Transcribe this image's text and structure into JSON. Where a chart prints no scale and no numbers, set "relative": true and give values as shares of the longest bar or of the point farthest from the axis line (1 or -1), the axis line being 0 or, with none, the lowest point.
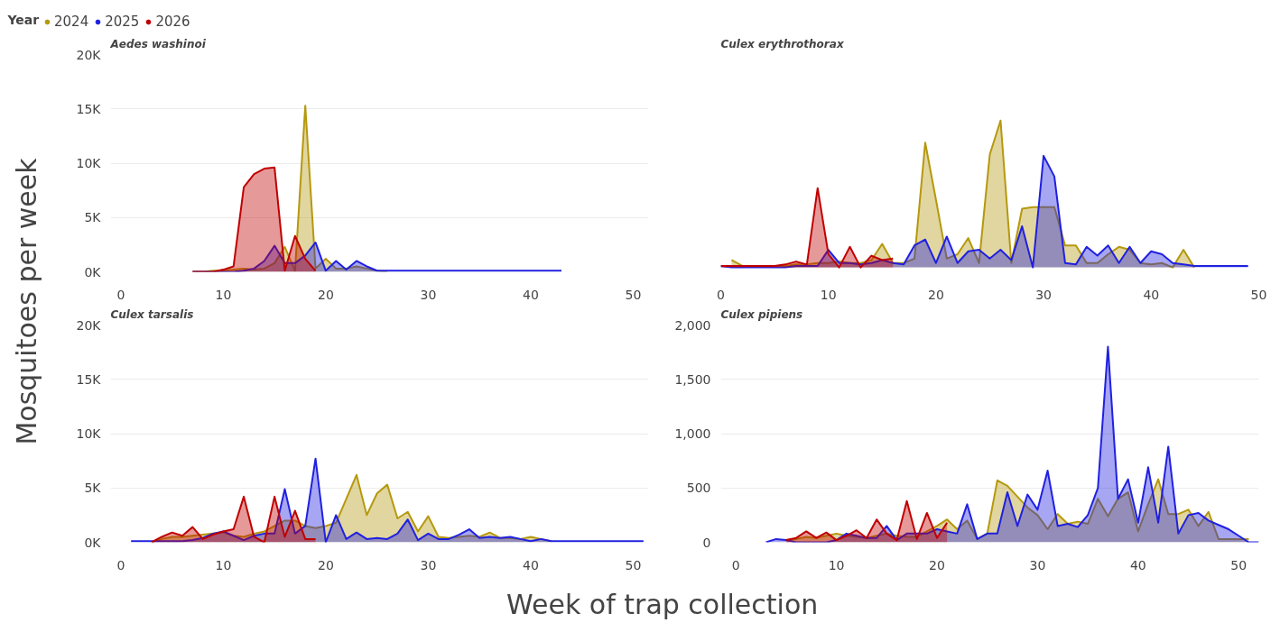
{
  "chart_data": [
    {
      "type": "area",
      "title": "Aedes washinoi",
      "ylabel": "Mosquitoes per week",
      "legend": "top",
      "legend_title": "Year",
      "xlim": [
        -1,
        51.5
      ],
      "xticks": [
        0,
        10,
        20,
        30,
        40,
        50
      ],
      "ylim": [
        0,
        20000
      ],
      "yticks": [
        {
          "value": 0,
          "label": "0K"
        },
        {
          "value": 5000,
          "label": "5K"
        },
        {
          "value": 10000,
          "label": "10K"
        },
        {
          "value": 15000,
          "label": "15K"
        },
        {
          "value": 20000,
          "label": "20K"
        }
      ],
      "grid": "y",
      "series": [
        {
          "name": "2024",
          "color": "#b5980e",
          "x": [
            7,
            8,
            9,
            10,
            11,
            12,
            13,
            14,
            15,
            16,
            17,
            18,
            19,
            20,
            21,
            22,
            23,
            24,
            25,
            26
          ],
          "values": [
            0,
            0,
            100,
            100,
            200,
            300,
            200,
            300,
            800,
            2300,
            100,
            15300,
            300,
            1200,
            300,
            300,
            500,
            300,
            100,
            0
          ]
        },
        {
          "name": "2025",
          "color": "#2020e0",
          "x": [
            7,
            8,
            9,
            10,
            11,
            12,
            13,
            14,
            15,
            16,
            17,
            18,
            19,
            20,
            21,
            22,
            23,
            24,
            25,
            26,
            27,
            28,
            29,
            30,
            31,
            32,
            33,
            34,
            35,
            36,
            37,
            38,
            39,
            40,
            41,
            42,
            43
          ],
          "values": [
            0,
            0,
            0,
            0,
            0,
            100,
            300,
            1000,
            2400,
            800,
            800,
            1500,
            2700,
            100,
            1000,
            200,
            1000,
            500,
            100,
            100,
            100,
            100,
            100,
            100,
            100,
            100,
            100,
            100,
            100,
            100,
            100,
            100,
            100,
            100,
            100,
            100,
            100
          ]
        },
        {
          "name": "2026",
          "color": "#c00000",
          "x": [
            7,
            8,
            9,
            10,
            11,
            12,
            13,
            14,
            15,
            16,
            17,
            18,
            19
          ],
          "values": [
            0,
            0,
            0,
            200,
            500,
            7800,
            9000,
            9500,
            9600,
            100,
            3300,
            1200,
            100
          ]
        }
      ]
    },
    {
      "type": "area",
      "title": "Culex erythrothorax",
      "relative": true,
      "tick_labels": "x",
      "xlim": [
        0,
        50
      ],
      "xticks": [
        0,
        10,
        20,
        30,
        40,
        50
      ],
      "series": [
        {
          "color": "#b5980e",
          "x": [
            1,
            2,
            3,
            4,
            5,
            6,
            7,
            8,
            9,
            10,
            11,
            12,
            13,
            14,
            15,
            16,
            17,
            18,
            19,
            20,
            21,
            22,
            23,
            24,
            25,
            26,
            27,
            28,
            29,
            30,
            31,
            32,
            33,
            34,
            35,
            36,
            37,
            38,
            39,
            40,
            41,
            42,
            43,
            44
          ],
          "values": [
            0.05,
            0.01,
            0.01,
            0.01,
            0.01,
            0.01,
            0.02,
            0.02,
            0.03,
            0.03,
            0.04,
            0.03,
            0.03,
            0.05,
            0.16,
            0.03,
            0.03,
            0.06,
            0.85,
            0.46,
            0.06,
            0.09,
            0.2,
            0.03,
            0.77,
            1,
            0.03,
            0.4,
            0.41,
            0.41,
            0.41,
            0.15,
            0.15,
            0.03,
            0.03,
            0.09,
            0.14,
            0.12,
            0.03,
            0.02,
            0.03,
            0,
            0.12,
            0
          ]
        },
        {
          "color": "#2020e0",
          "x": [
            0,
            1,
            2,
            3,
            4,
            5,
            6,
            7,
            8,
            9,
            10,
            11,
            12,
            13,
            14,
            15,
            16,
            17,
            18,
            19,
            20,
            21,
            22,
            23,
            24,
            25,
            26,
            27,
            28,
            29,
            30,
            31,
            32,
            33,
            34,
            35,
            36,
            37,
            38,
            39,
            40,
            41,
            42,
            43,
            44,
            45,
            46,
            47,
            48,
            49
          ],
          "values": [
            0.01,
            0,
            0,
            0,
            0,
            0,
            0,
            0.01,
            0.01,
            0.01,
            0.12,
            0.03,
            0.03,
            0.02,
            0.03,
            0.05,
            0.03,
            0.02,
            0.15,
            0.19,
            0.03,
            0.21,
            0.03,
            0.11,
            0.12,
            0.06,
            0.12,
            0.05,
            0.28,
            0,
            0.76,
            0.62,
            0.03,
            0.02,
            0.14,
            0.08,
            0.15,
            0.03,
            0.14,
            0.03,
            0.11,
            0.09,
            0.03,
            0.02,
            0.01,
            0.01,
            0.01,
            0.01,
            0.01,
            0.01
          ]
        },
        {
          "color": "#c00000",
          "x": [
            0,
            1,
            2,
            3,
            4,
            5,
            6,
            7,
            8,
            9,
            10,
            11,
            12,
            13,
            14,
            15,
            16
          ],
          "values": [
            0.01,
            0.01,
            0.01,
            0.01,
            0.01,
            0.01,
            0.02,
            0.04,
            0.02,
            0.54,
            0.09,
            0,
            0.14,
            0,
            0.08,
            0.05,
            0.06
          ]
        }
      ]
    },
    {
      "type": "area",
      "title": "Culex tarsalis",
      "xlabel": "Week of trap collection",
      "xlim": [
        -1,
        51.5
      ],
      "xticks": [
        0,
        10,
        20,
        30,
        40,
        50
      ],
      "ylim": [
        0,
        20000
      ],
      "yticks": [
        {
          "value": 0,
          "label": "0K"
        },
        {
          "value": 5000,
          "label": "5K"
        },
        {
          "value": 10000,
          "label": "10K"
        },
        {
          "value": 15000,
          "label": "15K"
        },
        {
          "value": 20000,
          "label": "20K"
        }
      ],
      "grid": "y",
      "series": [
        {
          "color": "#b5980e",
          "x": [
            3,
            4,
            5,
            6,
            7,
            8,
            9,
            10,
            11,
            12,
            13,
            14,
            15,
            16,
            17,
            18,
            19,
            20,
            21,
            22,
            23,
            24,
            25,
            26,
            27,
            28,
            29,
            30,
            31,
            32,
            33,
            34,
            35,
            36,
            37,
            38,
            39,
            40,
            41,
            42
          ],
          "values": [
            0,
            300,
            500,
            500,
            600,
            700,
            800,
            900,
            600,
            500,
            800,
            1000,
            1500,
            2000,
            2000,
            1500,
            1300,
            1500,
            1800,
            4000,
            6200,
            2500,
            4500,
            5300,
            2200,
            2800,
            1000,
            2400,
            500,
            400,
            500,
            600,
            500,
            900,
            400,
            400,
            300,
            500,
            300,
            100
          ]
        },
        {
          "color": "#2020e0",
          "x": [
            1,
            2,
            3,
            4,
            5,
            6,
            7,
            8,
            9,
            10,
            11,
            12,
            13,
            14,
            15,
            16,
            17,
            18,
            19,
            20,
            21,
            22,
            23,
            24,
            25,
            26,
            27,
            28,
            29,
            30,
            31,
            32,
            33,
            34,
            35,
            36,
            37,
            38,
            39,
            40,
            41,
            42,
            43,
            44,
            45,
            46,
            47,
            48,
            49,
            50,
            51
          ],
          "values": [
            100,
            100,
            100,
            100,
            100,
            100,
            200,
            400,
            800,
            1000,
            600,
            200,
            600,
            800,
            800,
            4900,
            800,
            1500,
            7700,
            0,
            2500,
            300,
            900,
            300,
            400,
            300,
            800,
            2100,
            200,
            800,
            300,
            300,
            700,
            1200,
            400,
            500,
            400,
            500,
            300,
            100,
            300,
            100,
            100,
            100,
            100,
            100,
            100,
            100,
            100,
            100,
            100
          ]
        },
        {
          "color": "#c00000",
          "x": [
            3,
            4,
            5,
            6,
            7,
            8,
            9,
            10,
            11,
            12,
            13,
            14,
            15,
            16,
            17,
            18,
            19
          ],
          "values": [
            0,
            500,
            900,
            600,
            1400,
            300,
            700,
            1000,
            1200,
            4200,
            500,
            0,
            4200,
            500,
            2900,
            300,
            300
          ]
        }
      ]
    },
    {
      "type": "area",
      "title": "Culex pipiens",
      "xlim": [
        -1.5,
        52
      ],
      "xticks": [
        0,
        10,
        20,
        30,
        40,
        50
      ],
      "ylim": [
        0,
        2000
      ],
      "yticks": [
        0,
        {
          "value": 500,
          "label": "500"
        },
        {
          "value": 1000,
          "label": "1,000"
        },
        {
          "value": 1500,
          "label": "1,500"
        },
        {
          "value": 2000,
          "label": "2,000"
        }
      ],
      "grid": "y",
      "series": [
        {
          "color": "#b5980e",
          "x": [
            5,
            6,
            7,
            8,
            9,
            10,
            11,
            12,
            13,
            14,
            15,
            16,
            17,
            18,
            19,
            20,
            21,
            22,
            23,
            24,
            25,
            26,
            27,
            28,
            29,
            30,
            31,
            32,
            33,
            34,
            35,
            36,
            37,
            38,
            39,
            40,
            41,
            42,
            43,
            44,
            45,
            46,
            47,
            48,
            49,
            50,
            51
          ],
          "values": [
            20,
            30,
            50,
            40,
            60,
            80,
            60,
            50,
            40,
            60,
            80,
            60,
            50,
            50,
            100,
            150,
            210,
            120,
            200,
            30,
            80,
            570,
            520,
            420,
            320,
            250,
            120,
            260,
            170,
            190,
            170,
            400,
            240,
            400,
            460,
            100,
            350,
            580,
            260,
            260,
            300,
            150,
            280,
            30,
            30,
            30,
            30
          ]
        },
        {
          "color": "#2020e0",
          "x": [
            3,
            4,
            5,
            6,
            7,
            8,
            9,
            10,
            11,
            12,
            13,
            14,
            15,
            16,
            17,
            18,
            19,
            20,
            21,
            22,
            23,
            24,
            25,
            26,
            27,
            28,
            29,
            30,
            31,
            32,
            33,
            34,
            35,
            36,
            37,
            38,
            39,
            40,
            41,
            42,
            43,
            44,
            45,
            46,
            47,
            48,
            49,
            50,
            51,
            52
          ],
          "values": [
            0,
            30,
            20,
            0,
            0,
            0,
            0,
            20,
            80,
            60,
            40,
            40,
            150,
            20,
            80,
            80,
            80,
            120,
            100,
            80,
            350,
            30,
            80,
            80,
            460,
            150,
            440,
            300,
            660,
            150,
            170,
            140,
            250,
            500,
            1800,
            400,
            580,
            180,
            690,
            180,
            880,
            80,
            250,
            270,
            200,
            160,
            120,
            60,
            0,
            0
          ]
        },
        {
          "color": "#c00000",
          "x": [
            5,
            6,
            7,
            8,
            9,
            10,
            11,
            12,
            13,
            14,
            15,
            16,
            17,
            18,
            19,
            20,
            21
          ],
          "values": [
            20,
            40,
            100,
            40,
            90,
            20,
            60,
            110,
            40,
            210,
            80,
            20,
            380,
            30,
            270,
            40,
            180
          ]
        }
      ]
    }
  ]
}
